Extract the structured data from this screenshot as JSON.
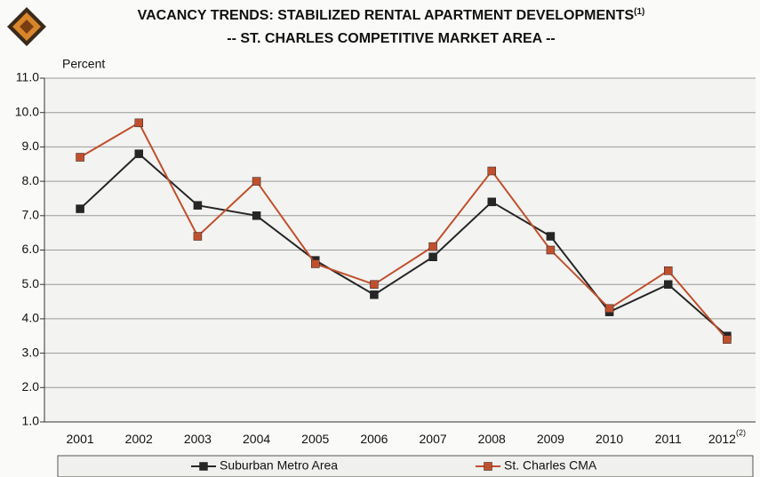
{
  "chart_data": {
    "type": "line",
    "title": "VACANCY TRENDS:  STABILIZED RENTAL APARTMENT DEVELOPMENTS",
    "title_note": "(1)",
    "subtitle": "-- ST. CHARLES COMPETITIVE MARKET AREA --",
    "y_label": "Percent",
    "categories": [
      "2001",
      "2002",
      "2003",
      "2004",
      "2005",
      "2006",
      "2007",
      "2008",
      "2009",
      "2010",
      "2011",
      "2012"
    ],
    "last_category_note": "(2)",
    "series": [
      {
        "name": "Suburban Metro Area",
        "color": "#262626",
        "values": [
          7.2,
          8.8,
          7.3,
          7.0,
          5.7,
          4.7,
          5.8,
          7.4,
          6.4,
          4.2,
          5.0,
          3.5
        ]
      },
      {
        "name": "St. Charles CMA",
        "color": "#c0502d",
        "values": [
          8.7,
          9.7,
          6.4,
          8.0,
          5.6,
          5.0,
          6.1,
          8.3,
          6.0,
          4.3,
          5.4,
          3.4
        ]
      }
    ],
    "ylim": [
      1,
      11
    ],
    "yticks": [
      {
        "value": 1,
        "label": "1.0"
      },
      {
        "value": 2,
        "label": "2.0"
      },
      {
        "value": 3,
        "label": "3.0"
      },
      {
        "value": 4,
        "label": "4.0"
      },
      {
        "value": 5,
        "label": "5.0"
      },
      {
        "value": 6,
        "label": "6.0"
      },
      {
        "value": 7,
        "label": "7.0"
      },
      {
        "value": 8,
        "label": "8.0"
      },
      {
        "value": 9,
        "label": "9.0"
      },
      {
        "value": 10,
        "label": "10.0"
      },
      {
        "value": 11,
        "label": "11.0"
      }
    ],
    "grid": true
  }
}
